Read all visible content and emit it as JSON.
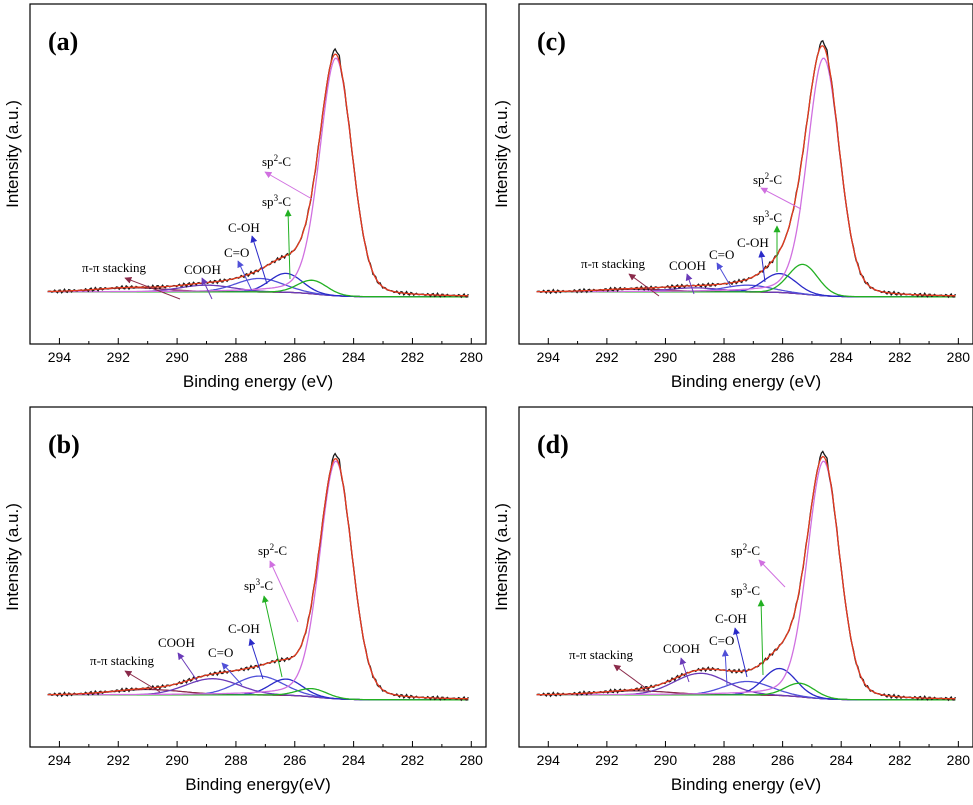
{
  "colors": {
    "envelope": "#e33b1e",
    "raw": "#1a1a1a",
    "sp2": "#d070e0",
    "sp3": "#22b022",
    "coh": "#2a2ac8",
    "co": "#5050d8",
    "cooh": "#6a3ab8",
    "pipi": "#8a2a4a",
    "baseline": "#5a2a2a"
  },
  "chart_data": [
    {
      "type": "line",
      "panel": "(a)",
      "xlabel": "Binding energy (eV)",
      "ylabel": "Intensity (a.u.)",
      "xlim": [
        295,
        279.5
      ],
      "xticks": [
        294,
        292,
        290,
        288,
        286,
        284,
        282,
        280
      ],
      "ylim": [
        0,
        1
      ],
      "components": [
        {
          "name": "sp2-C",
          "center": 284.6,
          "height": 0.88,
          "width": 0.55
        },
        {
          "name": "sp3-C",
          "center": 285.4,
          "height": 0.05,
          "width": 0.5
        },
        {
          "name": "C-OH",
          "center": 286.3,
          "height": 0.07,
          "width": 0.55
        },
        {
          "name": "C=O",
          "center": 287.2,
          "height": 0.05,
          "width": 0.8
        },
        {
          "name": "COOH",
          "center": 289.0,
          "height": 0.025,
          "width": 0.9
        },
        {
          "name": "π-π stacking",
          "center": 291.5,
          "height": 0.015,
          "width": 1.2
        }
      ],
      "annotations": [
        {
          "text": "sp2-C",
          "sup": "2"
        },
        {
          "text": "sp3-C",
          "sup": "3"
        },
        {
          "text": "C-OH"
        },
        {
          "text": "C=O"
        },
        {
          "text": "COOH"
        },
        {
          "text": "π-π stacking"
        }
      ]
    },
    {
      "type": "line",
      "panel": "(b)",
      "xlabel": "Binding energy(eV)",
      "ylabel": "Intensity (a.u.)",
      "xlim": [
        295,
        279.5
      ],
      "xticks": [
        294,
        292,
        290,
        288,
        286,
        284,
        282,
        280
      ],
      "ylim": [
        0,
        1
      ],
      "components": [
        {
          "name": "sp2-C",
          "center": 284.6,
          "height": 0.88,
          "width": 0.55
        },
        {
          "name": "sp3-C",
          "center": 285.4,
          "height": 0.03,
          "width": 0.5
        },
        {
          "name": "C-OH",
          "center": 286.3,
          "height": 0.06,
          "width": 0.55
        },
        {
          "name": "C=O",
          "center": 287.2,
          "height": 0.07,
          "width": 0.8
        },
        {
          "name": "COOH",
          "center": 288.8,
          "height": 0.06,
          "width": 0.9
        },
        {
          "name": "π-π stacking",
          "center": 291.0,
          "height": 0.02,
          "width": 1.2
        }
      ],
      "annotations": [
        {
          "text": "sp2-C",
          "sup": "2"
        },
        {
          "text": "sp3-C",
          "sup": "3"
        },
        {
          "text": "C-OH"
        },
        {
          "text": "C=O"
        },
        {
          "text": "COOH"
        },
        {
          "text": "π-π stacking"
        }
      ]
    },
    {
      "type": "line",
      "panel": "(c)",
      "xlabel": "Binding energy (eV)",
      "ylabel": "Intensity (a.u.)",
      "xlim": [
        295,
        279.5
      ],
      "xticks": [
        294,
        292,
        290,
        288,
        286,
        284,
        282,
        280
      ],
      "ylim": [
        0,
        1
      ],
      "components": [
        {
          "name": "sp2-C",
          "center": 284.6,
          "height": 0.88,
          "width": 0.55
        },
        {
          "name": "sp3-C",
          "center": 285.3,
          "height": 0.11,
          "width": 0.5
        },
        {
          "name": "C-OH",
          "center": 286.1,
          "height": 0.07,
          "width": 0.55
        },
        {
          "name": "C=O",
          "center": 287.2,
          "height": 0.025,
          "width": 0.8
        },
        {
          "name": "COOH",
          "center": 289.0,
          "height": 0.015,
          "width": 0.9
        },
        {
          "name": "π-π stacking",
          "center": 291.0,
          "height": 0.01,
          "width": 1.2
        }
      ],
      "annotations": [
        {
          "text": "sp2-C",
          "sup": "2"
        },
        {
          "text": "sp3-C",
          "sup": "3"
        },
        {
          "text": "C-OH"
        },
        {
          "text": "C=O"
        },
        {
          "text": "COOH"
        },
        {
          "text": "π-π stacking"
        }
      ]
    },
    {
      "type": "line",
      "panel": "(d)",
      "xlabel": "Binding energy (eV)",
      "ylabel": "Intensity (a.u.)",
      "xlim": [
        295,
        279.5
      ],
      "xticks": [
        294,
        292,
        290,
        288,
        286,
        284,
        282,
        280
      ],
      "ylim": [
        0,
        1
      ],
      "components": [
        {
          "name": "sp2-C",
          "center": 284.6,
          "height": 0.88,
          "width": 0.55
        },
        {
          "name": "sp3-C",
          "center": 285.4,
          "height": 0.05,
          "width": 0.5
        },
        {
          "name": "C-OH",
          "center": 286.1,
          "height": 0.1,
          "width": 0.55
        },
        {
          "name": "C=O",
          "center": 287.2,
          "height": 0.05,
          "width": 0.8
        },
        {
          "name": "COOH",
          "center": 288.8,
          "height": 0.08,
          "width": 0.9
        },
        {
          "name": "π-π stacking",
          "center": 291.0,
          "height": 0.015,
          "width": 1.2
        }
      ],
      "annotations": [
        {
          "text": "sp2-C",
          "sup": "2"
        },
        {
          "text": "sp3-C",
          "sup": "3"
        },
        {
          "text": "C-OH"
        },
        {
          "text": "C=O"
        },
        {
          "text": "COOH"
        },
        {
          "text": "π-π stacking"
        }
      ]
    }
  ]
}
